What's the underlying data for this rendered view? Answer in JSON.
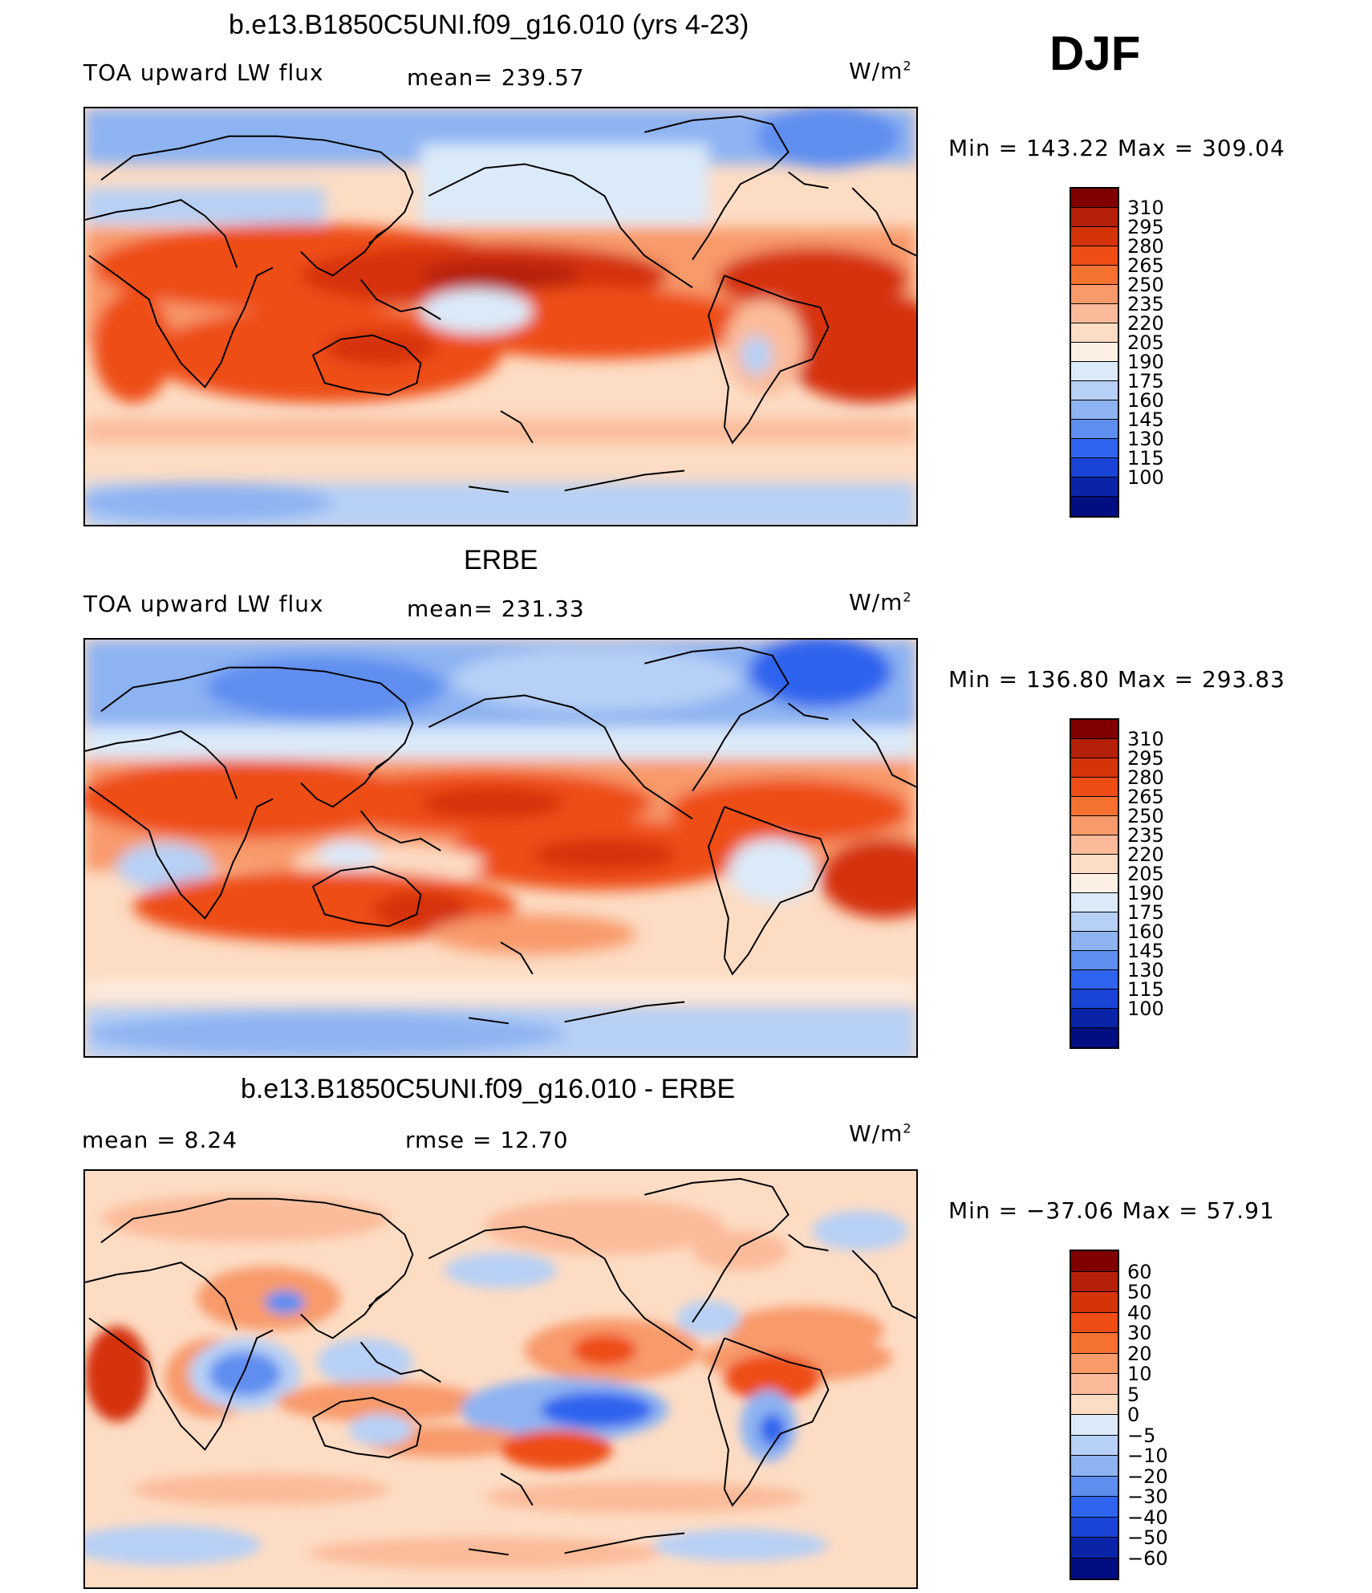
{
  "season": "DJF",
  "units_label": "W/m",
  "units_sup": "2",
  "panels": [
    {
      "title": "b.e13.B1850C5UNI.f09_g16.010 (yrs 4-23)",
      "left_label": "TOA upward LW flux",
      "center_label": "mean=  239.57",
      "minmax": "Min  =  143.22  Max  =  309.04"
    },
    {
      "title": "ERBE",
      "left_label": "TOA upward LW flux",
      "center_label": "mean=  231.33",
      "minmax": "Min  =  136.80  Max  =  293.83"
    },
    {
      "title": "b.e13.B1850C5UNI.f09_g16.010 - ERBE",
      "left_label": "mean  =     8.24",
      "center_label": "rmse  =    12.70",
      "minmax": "Min  =  −37.06  Max  =    57.91"
    }
  ],
  "colorbars": {
    "abs_levels": [
      "310",
      "295",
      "280",
      "265",
      "250",
      "235",
      "220",
      "205",
      "190",
      "175",
      "160",
      "145",
      "130",
      "115",
      "100"
    ],
    "abs_colors": [
      "#7f0000",
      "#b52008",
      "#d5330a",
      "#ee4d16",
      "#f5712f",
      "#f89a6a",
      "#fbbb9a",
      "#fddcc4",
      "#fcefe3",
      "#dbeaf9",
      "#b7d0f5",
      "#8db3f2",
      "#5e8ef0",
      "#2f64ee",
      "#1a44d6",
      "#0a24a8",
      "#000e80"
    ],
    "diff_levels": [
      "60",
      "50",
      "40",
      "30",
      "20",
      "10",
      "5",
      "0",
      "−5",
      "−10",
      "−20",
      "−30",
      "−40",
      "−50",
      "−60"
    ],
    "diff_colors": [
      "#7f0000",
      "#b52008",
      "#d5330a",
      "#ee4d16",
      "#f5712f",
      "#f89a6a",
      "#fbbb9a",
      "#fddcc4",
      "#dbeaf9",
      "#b7d0f5",
      "#8db3f2",
      "#5e8ef0",
      "#2f64ee",
      "#1a44d6",
      "#0a24a8",
      "#000e80"
    ]
  }
}
